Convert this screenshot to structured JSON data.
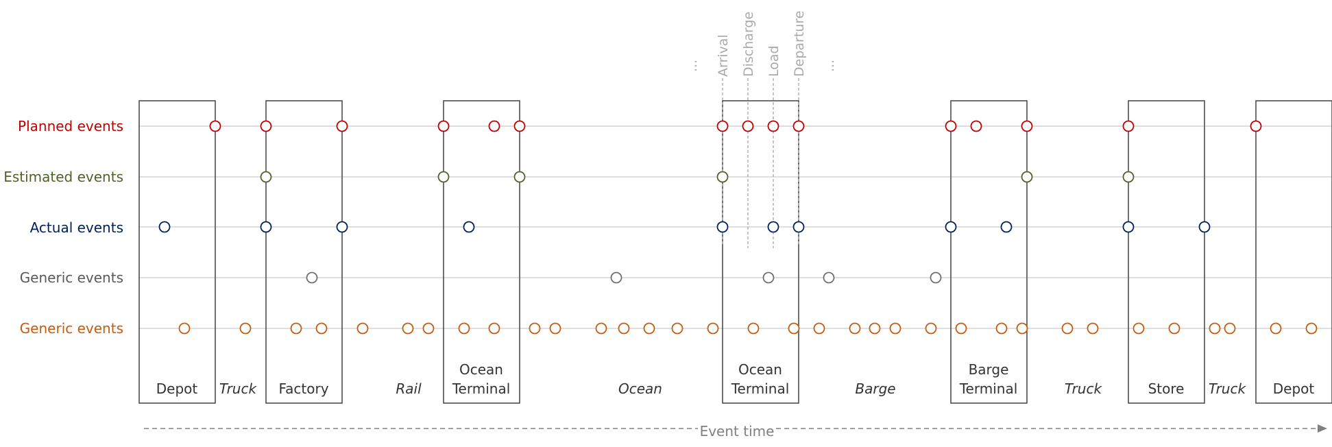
{
  "rows": [
    {
      "label": "Planned events",
      "color": "#c00000"
    },
    {
      "label": "Estimated events",
      "color": "#4f6228"
    },
    {
      "label": "Actual events",
      "color": "#002060"
    },
    {
      "label": "Generic events",
      "color": "#595959"
    },
    {
      "label": "Generic events",
      "color": "#c55a11"
    }
  ],
  "nodes": [
    {
      "lines": [
        "Depot"
      ]
    },
    {
      "lines": [
        "Factory"
      ]
    },
    {
      "lines": [
        "Ocean",
        "Terminal"
      ]
    },
    {
      "lines": [
        "Ocean",
        "Terminal"
      ]
    },
    {
      "lines": [
        "Barge",
        "Terminal"
      ]
    },
    {
      "lines": [
        "Store"
      ]
    },
    {
      "lines": [
        "Depot"
      ]
    }
  ],
  "legs": [
    "Truck",
    "Rail",
    "Ocean",
    "Barge",
    "Truck",
    "Truck"
  ],
  "sub_events": {
    "ellipsis": "...",
    "labels": [
      "Arrival",
      "Discharge",
      "Load",
      "Departure"
    ]
  },
  "axis": {
    "label": "Event time"
  }
}
